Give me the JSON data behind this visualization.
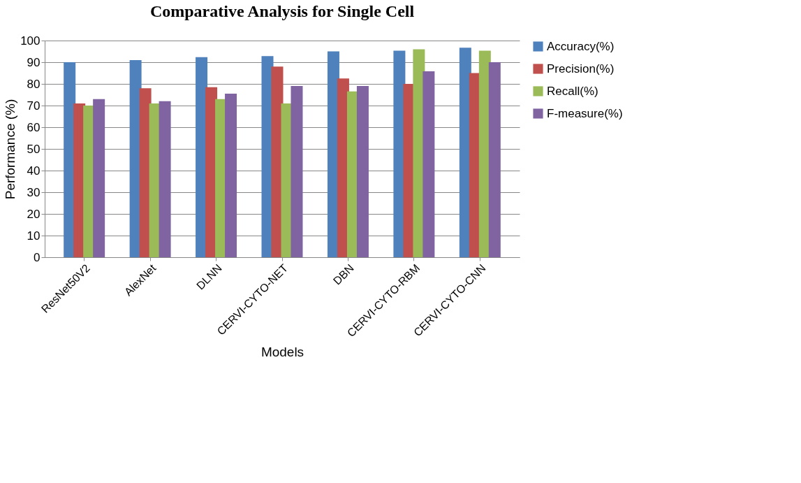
{
  "chart_data": {
    "type": "bar",
    "title": "Comparative Analysis for Single Cell",
    "xlabel": "Models",
    "ylabel": "Performance (%)",
    "categories": [
      "ResNet50V2",
      "AlexNet",
      "DLNN",
      "CERVI-CYTO-NET",
      "DBN",
      "CERVI-CYTO-RBM",
      "CERVI-CYTO-CNN"
    ],
    "series": [
      {
        "name": "Accuracy(%)",
        "color": "#4f81bd",
        "values": [
          90,
          91,
          92.3,
          92.8,
          95,
          95.3,
          96.7
        ]
      },
      {
        "name": "Precision(%)",
        "color": "#c0504d",
        "values": [
          71,
          78,
          78.5,
          88,
          82.5,
          80,
          85
        ]
      },
      {
        "name": "Recall(%)",
        "color": "#9bbb59",
        "values": [
          70,
          71,
          73,
          71,
          76.5,
          96,
          95.3
        ]
      },
      {
        "name": "F-measure(%)",
        "color": "#8064a2",
        "values": [
          73,
          72,
          75.5,
          79,
          79,
          85.8,
          90
        ]
      }
    ],
    "ylim": [
      0,
      100
    ],
    "yticks": [
      0,
      10,
      20,
      30,
      40,
      50,
      60,
      70,
      80,
      90,
      100
    ],
    "grid": "y",
    "legend": "right"
  }
}
